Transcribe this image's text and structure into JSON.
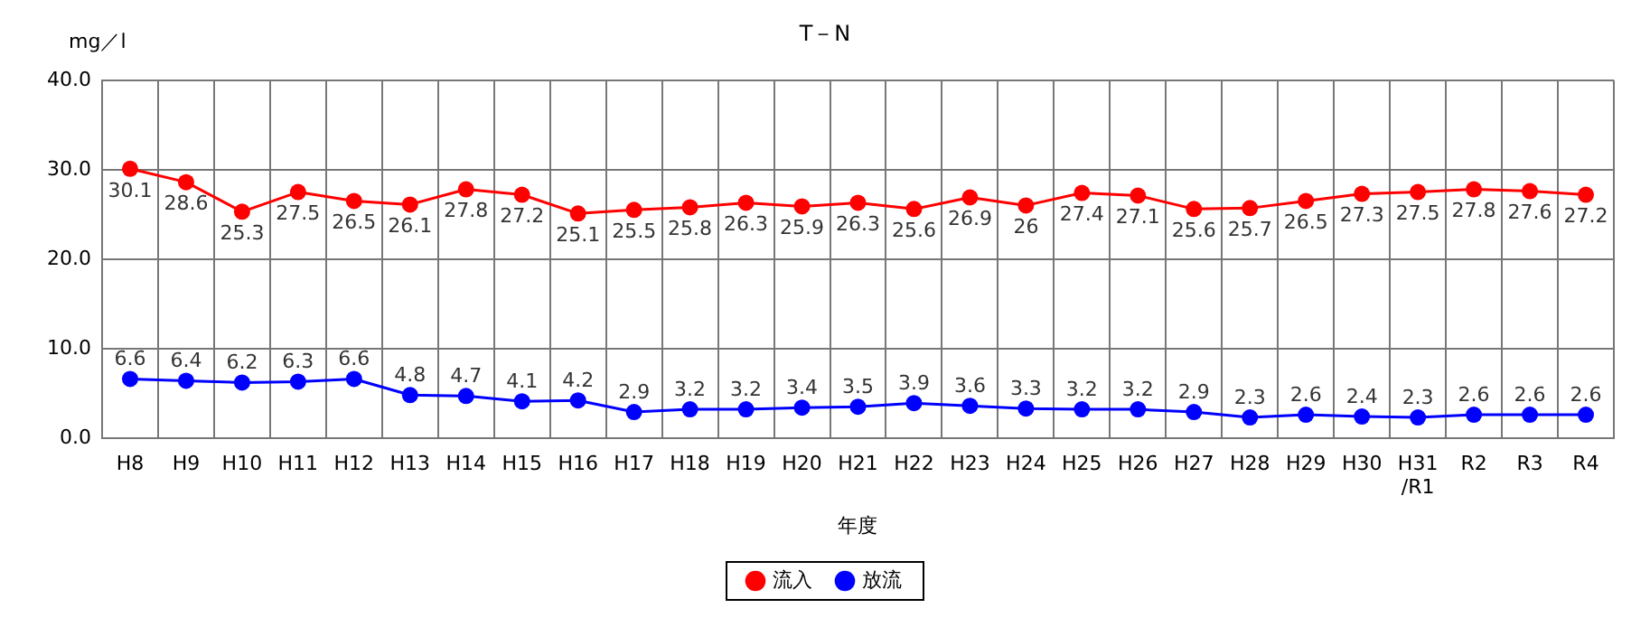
{
  "chart_data": {
    "type": "line",
    "title": "T－N",
    "ylabel": "mg／l",
    "xlabel": "年度",
    "categories": [
      "H8",
      "H9",
      "H10",
      "H11",
      "H12",
      "H13",
      "H14",
      "H15",
      "H16",
      "H17",
      "H18",
      "H19",
      "H20",
      "H21",
      "H22",
      "H23",
      "H24",
      "H25",
      "H26",
      "H27",
      "H28",
      "H29",
      "H30",
      "H31/R1",
      "R2",
      "R3",
      "R4"
    ],
    "series": [
      {
        "name": "流入",
        "color": "#ff0000",
        "values": [
          30.1,
          28.6,
          25.3,
          27.5,
          26.5,
          26.1,
          27.8,
          27.2,
          25.1,
          25.5,
          25.8,
          26.3,
          25.9,
          26.3,
          25.6,
          26.9,
          26,
          27.4,
          27.1,
          25.6,
          25.7,
          26.5,
          27.3,
          27.5,
          27.8,
          27.6,
          27.2
        ]
      },
      {
        "name": "放流",
        "color": "#0000ff",
        "values": [
          6.6,
          6.4,
          6.2,
          6.3,
          6.6,
          4.8,
          4.7,
          4.1,
          4.2,
          2.9,
          3.2,
          3.2,
          3.4,
          3.5,
          3.9,
          3.6,
          3.3,
          3.2,
          3.2,
          2.9,
          2.3,
          2.6,
          2.4,
          2.3,
          2.6,
          2.6,
          2.6
        ]
      }
    ],
    "ylim": [
      0,
      40
    ],
    "yticks": [
      {
        "value": 0,
        "label": "0.0"
      },
      {
        "value": 10,
        "label": "10.0"
      },
      {
        "value": 20,
        "label": "20.0"
      },
      {
        "value": 30,
        "label": "30.0"
      },
      {
        "value": 40,
        "label": "40.0"
      }
    ],
    "grid": true,
    "legend": "bottom",
    "marker": "circle",
    "line_style": "solid",
    "data_labels": true
  }
}
